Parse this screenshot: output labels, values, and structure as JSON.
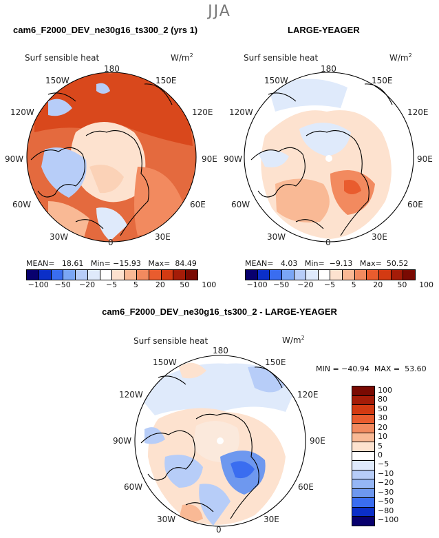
{
  "season": "JJA",
  "panels": [
    {
      "title": "cam6_F2000_DEV_ne30g16_ts300_2 (yrs 1)",
      "field": "Surf sensible heat",
      "unit": "W/m",
      "unit_exp": "2",
      "labels": {
        "top": "180",
        "ul": "150W",
        "ur": "150E",
        "l1": "120W",
        "r1": "120E",
        "l2": "90W",
        "r2": "90E",
        "l3": "60W",
        "r3": "60E",
        "ll": "30W",
        "lr": "30E",
        "bottom": "0"
      },
      "stats": {
        "mean_label": "MEAN=",
        "mean": "18.61",
        "min_label": "Min=",
        "min": "−15.93",
        "max_label": "Max=",
        "max": "84.49"
      },
      "colorbar_labels": [
        "−100",
        "−50",
        "−20",
        "−5",
        "5",
        "20",
        "50",
        "100"
      ]
    },
    {
      "title": "LARGE-YEAGER",
      "field": "Surf sensible heat",
      "unit": "W/m",
      "unit_exp": "2",
      "labels": {
        "top": "180",
        "ul": "150W",
        "ur": "150E",
        "l1": "120W",
        "r1": "120E",
        "l2": "90W",
        "r2": "90E",
        "l3": "60W",
        "r3": "60E",
        "ll": "30W",
        "lr": "30E",
        "bottom": "0"
      },
      "stats": {
        "mean_label": "MEAN=",
        "mean": "4.03",
        "min_label": "Min=",
        "min": "−9.13",
        "max_label": "Max=",
        "max": "50.52"
      },
      "colorbar_labels": [
        "−100",
        "−50",
        "−20",
        "−5",
        "5",
        "20",
        "50",
        "100"
      ]
    },
    {
      "title": "cam6_F2000_DEV_ne30g16_ts300_2 - LARGE-YEAGER",
      "field": "Surf sensible heat",
      "unit": "W/m",
      "unit_exp": "2",
      "labels": {
        "top": "180",
        "ul": "150W",
        "ur": "150E",
        "l1": "120W",
        "r1": "120E",
        "l2": "90W",
        "r2": "90E",
        "l3": "60W",
        "r3": "60E",
        "ll": "30W",
        "lr": "30E",
        "bottom": "0"
      },
      "minmax": "MIN = −40.94  MAX =  53.60",
      "colorbar_labels": [
        "100",
        "80",
        "50",
        "30",
        "20",
        "10",
        "5",
        "0",
        "−5",
        "−10",
        "−20",
        "−30",
        "−50",
        "−80",
        "−100"
      ]
    }
  ],
  "colors": {
    "abs_scale": [
      "#08006e",
      "#0b2fc8",
      "#3a6df0",
      "#7aa6f5",
      "#b7cdf8",
      "#dfeafb",
      "#ffffff",
      "#fde2cf",
      "#f9b995",
      "#f28a5f",
      "#e95c2e",
      "#d33a12",
      "#a51c08",
      "#7a0a02"
    ],
    "diff_scale": [
      "#7a0a02",
      "#a51c08",
      "#d33a12",
      "#e95c2e",
      "#f28a5f",
      "#f9b995",
      "#fde2cf",
      "#ffffff",
      "#dfeafb",
      "#b7cdf8",
      "#95b6f5",
      "#6e98ef",
      "#3a6df0",
      "#0b2fc8",
      "#08006e"
    ]
  }
}
